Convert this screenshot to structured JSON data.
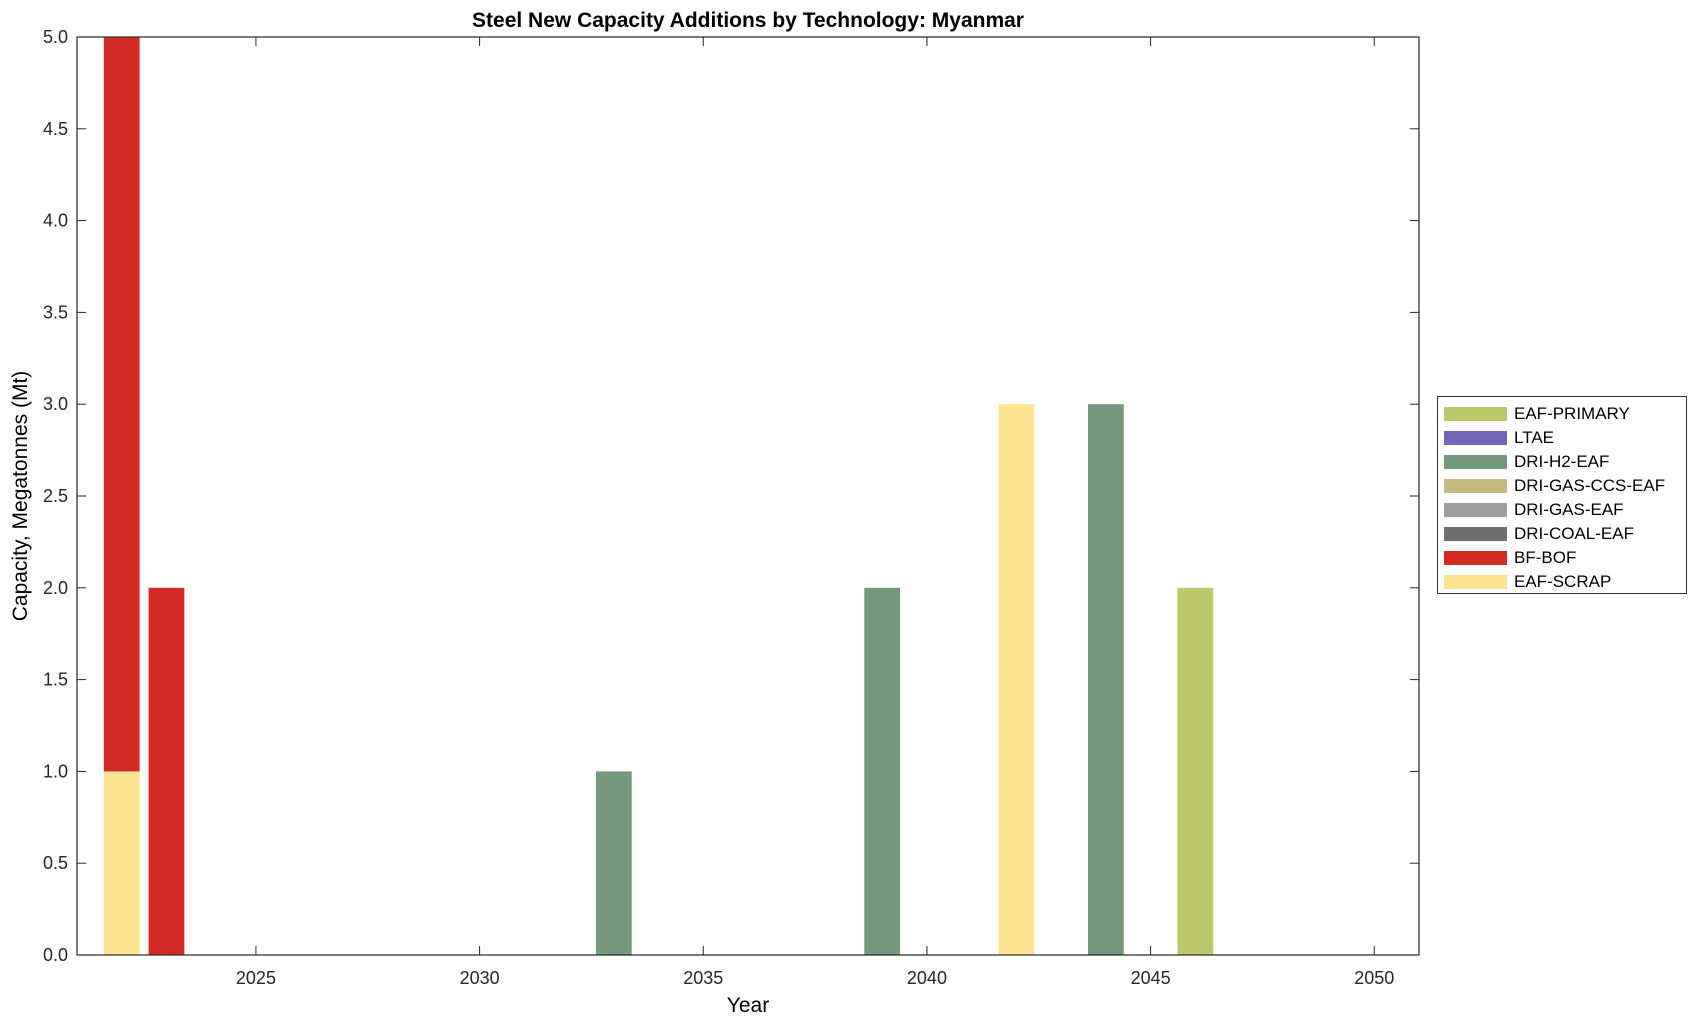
{
  "chart_data": {
    "type": "bar",
    "stacked": true,
    "title": "Steel New Capacity Additions by Technology: Myanmar",
    "xlabel": "Year",
    "ylabel": "Capacity, Megatonnes (Mt)",
    "xlim": [
      2021,
      2051
    ],
    "ylim": [
      0,
      5
    ],
    "xticks": [
      2025,
      2030,
      2035,
      2040,
      2045,
      2050
    ],
    "yticks": [
      0.0,
      0.5,
      1.0,
      1.5,
      2.0,
      2.5,
      3.0,
      3.5,
      4.0,
      4.5,
      5.0
    ],
    "ytick_labels": [
      "0.0",
      "0.5",
      "1.0",
      "1.5",
      "2.0",
      "2.5",
      "3.0",
      "3.5",
      "4.0",
      "4.5",
      "5.0"
    ],
    "grid": false,
    "legend_position": "right",
    "categories": [
      2022,
      2023,
      2033,
      2039,
      2042,
      2044,
      2046
    ],
    "series": [
      {
        "name": "EAF-SCRAP",
        "color": "#FEE491",
        "values": [
          1,
          0,
          0,
          0,
          3,
          0,
          0
        ]
      },
      {
        "name": "BF-BOF",
        "color": "#D22A24",
        "values": [
          4,
          2,
          0,
          0,
          0,
          0,
          0
        ]
      },
      {
        "name": "DRI-COAL-EAF",
        "color": "#6E6E6E",
        "values": [
          0,
          0,
          0,
          0,
          0,
          0,
          0
        ]
      },
      {
        "name": "DRI-GAS-EAF",
        "color": "#9E9E9E",
        "values": [
          0,
          0,
          0,
          0,
          0,
          0,
          0
        ]
      },
      {
        "name": "DRI-GAS-CCS-EAF",
        "color": "#C4BC7E",
        "values": [
          0,
          0,
          0,
          0,
          0,
          0,
          0
        ]
      },
      {
        "name": "DRI-H2-EAF",
        "color": "#76997D",
        "values": [
          0,
          0,
          1,
          2,
          0,
          3,
          0
        ]
      },
      {
        "name": "LTAE",
        "color": "#7266B6",
        "values": [
          0,
          0,
          0,
          0,
          0,
          0,
          0
        ]
      },
      {
        "name": "EAF-PRIMARY",
        "color": "#BDC86A",
        "values": [
          0,
          0,
          0,
          0,
          0,
          0,
          2
        ]
      }
    ]
  }
}
